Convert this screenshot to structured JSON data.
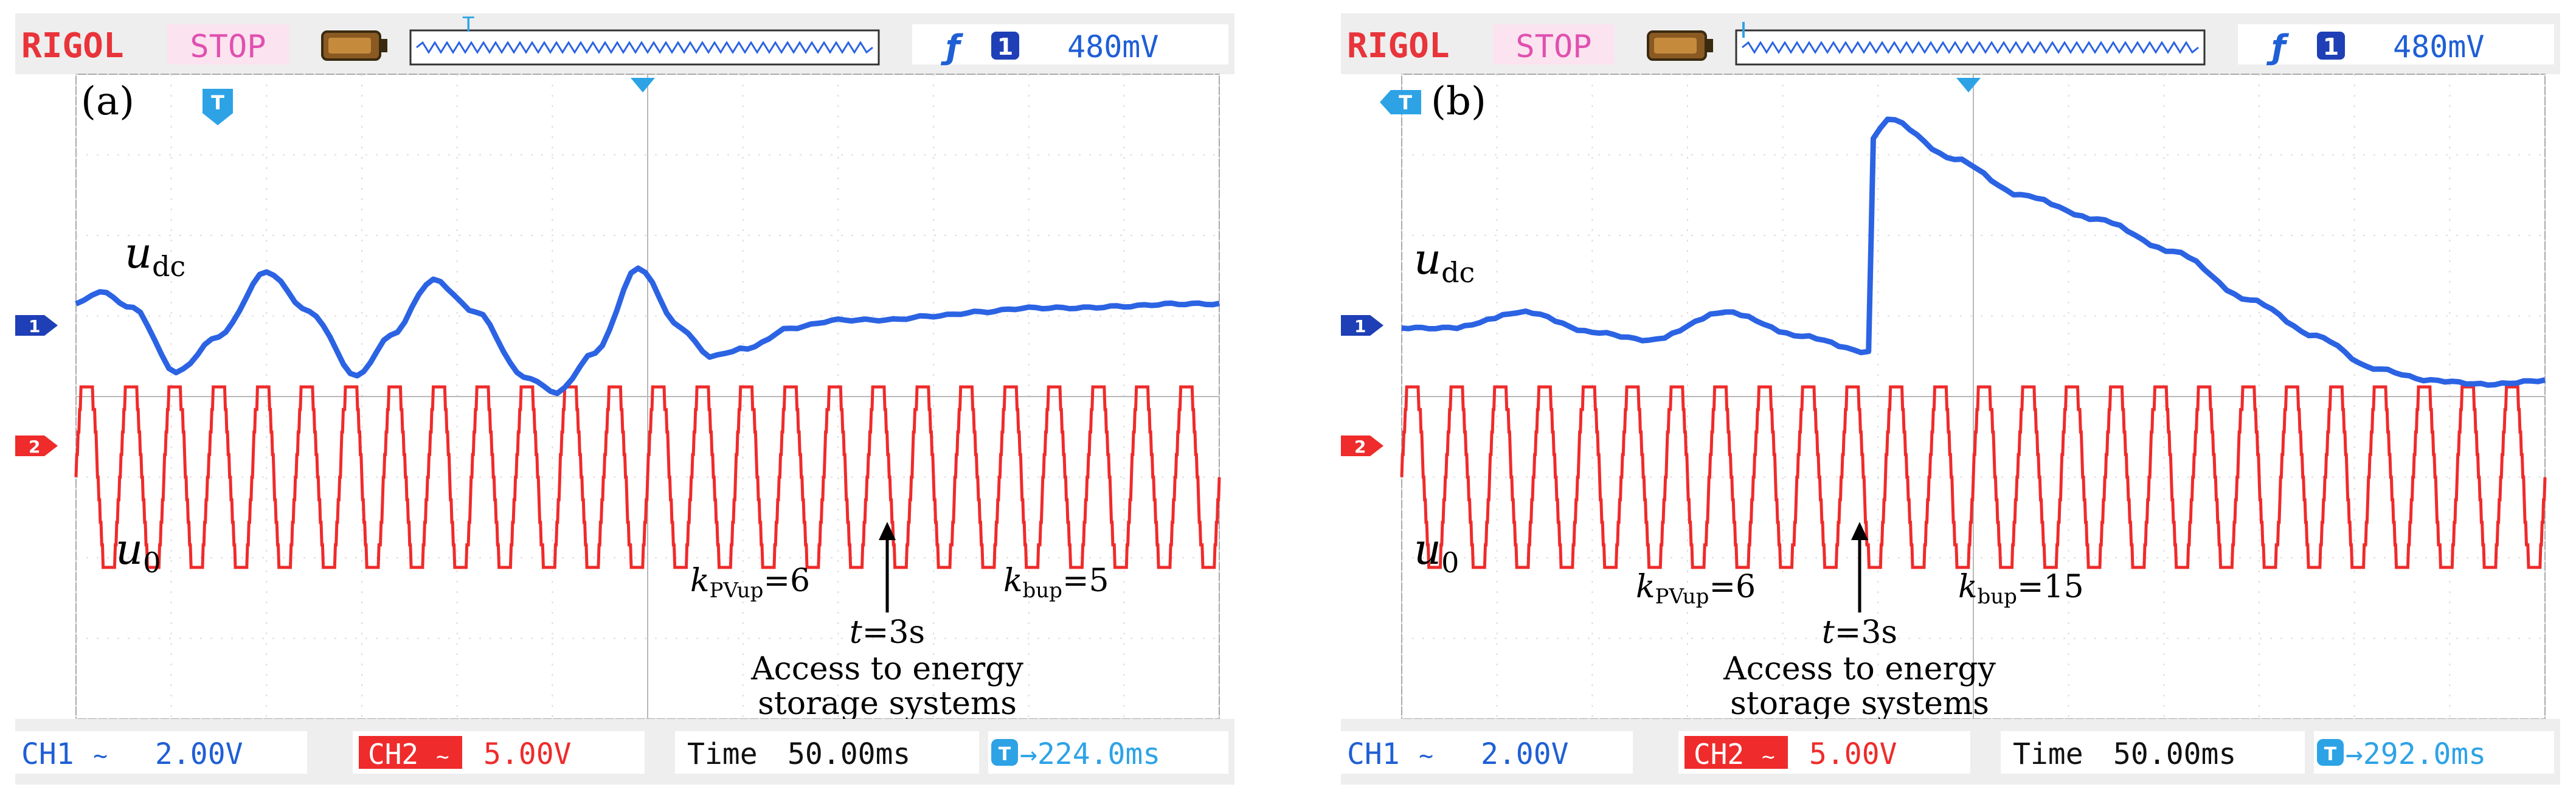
{
  "colors": {
    "brand": "#e8343a",
    "stop_bg": "#fbe3ef",
    "stop_text": "#e050b0",
    "ch1": "#2b63e3",
    "ch2": "#ef2b2b",
    "trigger": "#2da3e6",
    "header_text": "#1f5fd6"
  },
  "panels": [
    {
      "id": "a",
      "header": {
        "brand": "RIGOL",
        "status": "STOP",
        "trigger_level": "480mV"
      },
      "footer": {
        "ch1_label": "CH1",
        "ch1_scale": "2.00V",
        "ch2_label": "CH2",
        "ch2_scale": "5.00V",
        "time_label": "Time",
        "time_scale": "50.00ms",
        "trigger_offset": "→224.0ms"
      },
      "annotations": {
        "panel_label": "(a)",
        "udc_symbol": "u",
        "udc_sub": "dc",
        "u0_symbol": "u",
        "u0_sub": "0",
        "k1_symbol": "k",
        "k1_sub": "PVup",
        "k1_value": "=6",
        "k2_symbol": "k",
        "k2_sub": "bup",
        "k2_value": "=5",
        "time_symbol": "t",
        "time_value": "=3s",
        "event_line1": "Access to energy",
        "event_line2": "storage systems"
      },
      "chart_data": {
        "type": "line",
        "xlabel": "",
        "ylabel": "",
        "grid": true,
        "x_range": [
          0,
          12
        ],
        "y_range_div": [
          -4,
          4
        ],
        "event_x_div": 6.9,
        "ch2_periods": 26,
        "series": [
          {
            "channel": "CH1",
            "x": [
              0,
              0.25,
              0.6,
              1.05,
              1.5,
              2.0,
              2.45,
              2.95,
              3.3,
              3.75,
              4.2,
              4.7,
              5.05,
              5.45,
              5.9,
              6.35,
              6.65,
              7.05,
              7.5,
              8.0,
              8.5,
              9.0,
              9.5,
              10.0,
              10.5,
              11.0,
              11.5,
              12.0
            ],
            "y": [
              1.15,
              1.3,
              1.1,
              0.3,
              0.75,
              1.55,
              1.05,
              0.25,
              0.75,
              1.45,
              1.05,
              0.25,
              0.05,
              0.55,
              1.6,
              0.85,
              0.5,
              0.6,
              0.85,
              0.95,
              0.95,
              1.0,
              1.05,
              1.1,
              1.1,
              1.12,
              1.15,
              1.15
            ]
          },
          {
            "channel": "CH2",
            "waveform": "sine-ish",
            "center_div": -1.0,
            "amplitude_div": 1.0
          }
        ]
      }
    },
    {
      "id": "b",
      "header": {
        "brand": "RIGOL",
        "status": "STOP",
        "trigger_level": "480mV"
      },
      "footer": {
        "ch1_label": "CH1",
        "ch1_scale": "2.00V",
        "ch2_label": "CH2",
        "ch2_scale": "5.00V",
        "time_label": "Time",
        "time_scale": "50.00ms",
        "trigger_offset": "→292.0ms"
      },
      "annotations": {
        "panel_label": "(b)",
        "udc_symbol": "u",
        "udc_sub": "dc",
        "u0_symbol": "u",
        "u0_sub": "0",
        "k1_symbol": "k",
        "k1_sub": "PVup",
        "k1_value": "=6",
        "k2_symbol": "k",
        "k2_sub": "bup",
        "k2_value": "=15",
        "time_symbol": "t",
        "time_value": "=3s",
        "event_line1": "Access to energy",
        "event_line2": "storage systems"
      },
      "chart_data": {
        "type": "line",
        "xlabel": "",
        "ylabel": "",
        "grid": true,
        "x_range": [
          0,
          12
        ],
        "y_range_div": [
          -4,
          4
        ],
        "event_x_div": 4.9,
        "ch2_periods": 26,
        "series": [
          {
            "channel": "CH1",
            "x": [
              0,
              0.5,
              1.3,
              2.0,
              2.6,
              3.4,
              4.2,
              4.9,
              4.95,
              5.1,
              5.8,
              6.5,
              7.3,
              8.1,
              8.9,
              9.6,
              10.2,
              10.8,
              11.4,
              12.0
            ],
            "y": [
              0.85,
              0.85,
              1.05,
              0.8,
              0.7,
              1.05,
              0.75,
              0.55,
              3.2,
              3.45,
              2.95,
              2.5,
              2.2,
              1.8,
              1.2,
              0.75,
              0.35,
              0.2,
              0.15,
              0.2
            ]
          },
          {
            "channel": "CH2",
            "waveform": "sine-ish",
            "center_div": -1.0,
            "amplitude_div": 1.0
          }
        ]
      }
    }
  ]
}
